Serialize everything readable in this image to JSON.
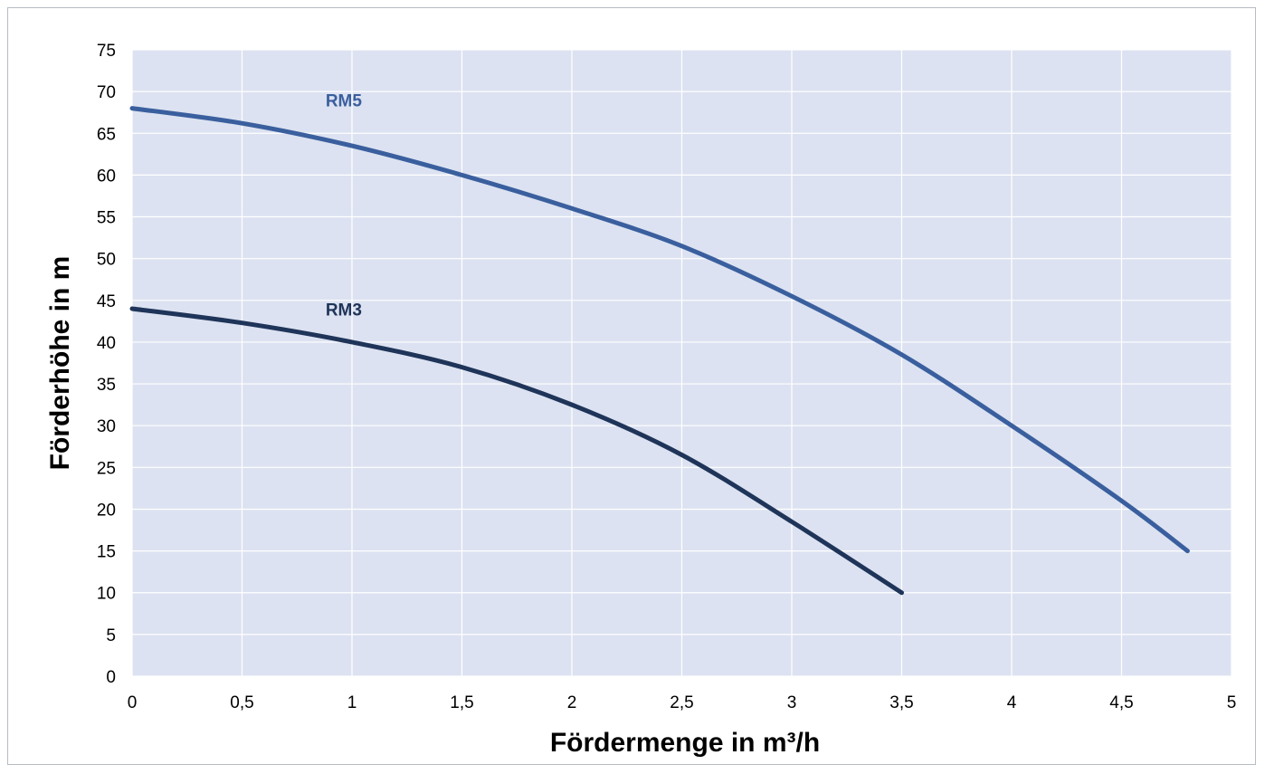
{
  "chart_data": {
    "type": "line",
    "xlabel": "Fördermenge in m³/h",
    "ylabel": "Förderhöhe in m",
    "xlim": [
      0,
      5
    ],
    "ylim": [
      0,
      75
    ],
    "x_ticks": [
      "0",
      "0,5",
      "1",
      "1,5",
      "2",
      "2,5",
      "3",
      "3,5",
      "4",
      "4,5",
      "5"
    ],
    "y_ticks": [
      "0",
      "5",
      "10",
      "15",
      "20",
      "25",
      "30",
      "35",
      "40",
      "45",
      "50",
      "55",
      "60",
      "65",
      "70",
      "75"
    ],
    "grid": true,
    "plot_background": "#dce2f1",
    "series": [
      {
        "name": "RM5",
        "color": "#3a5f9e",
        "label_at": [
          0.88,
          68
        ],
        "x": [
          0,
          0.5,
          1,
          1.5,
          2,
          2.5,
          3,
          3.5,
          4,
          4.5,
          4.8
        ],
        "y": [
          68,
          66.2,
          63.5,
          60,
          56,
          51.5,
          45.5,
          38.5,
          30,
          21,
          15
        ]
      },
      {
        "name": "RM3",
        "color": "#1f3459",
        "label_at": [
          0.88,
          43
        ],
        "x": [
          0,
          0.5,
          1,
          1.5,
          2,
          2.5,
          3,
          3.5
        ],
        "y": [
          44,
          42.3,
          40,
          37,
          32.5,
          26.5,
          18.5,
          10
        ]
      }
    ]
  }
}
